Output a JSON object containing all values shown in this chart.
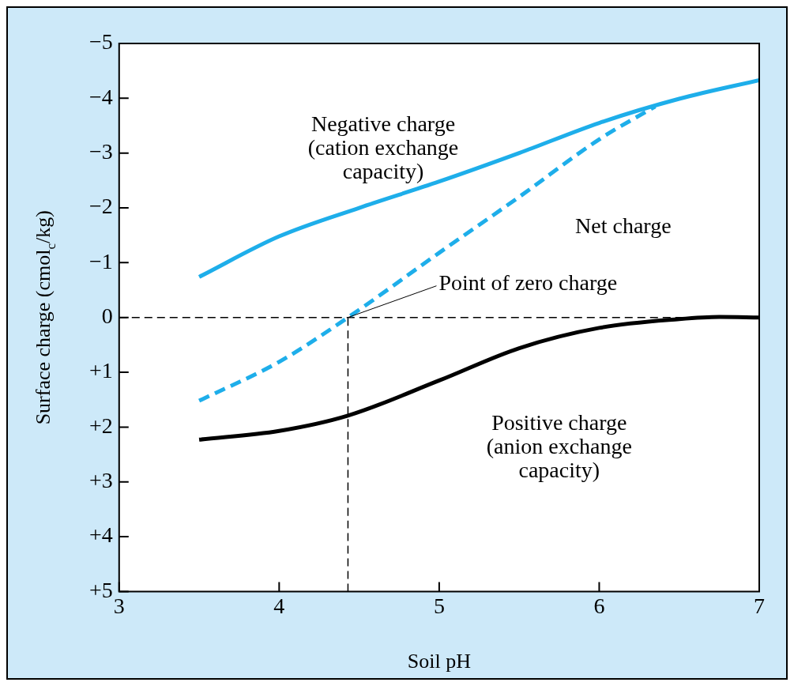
{
  "chart_data": {
    "type": "line",
    "xlabel": "Soil pH",
    "ylabel": "Surface charge (cmol$_{c}$/kg)",
    "xlim": [
      3,
      7
    ],
    "xticks": [
      3,
      4,
      5,
      6,
      7
    ],
    "ylim": [
      5,
      -5
    ],
    "yticks": [
      {
        "value": -5,
        "label": "−5"
      },
      {
        "value": -4,
        "label": "−4"
      },
      {
        "value": -3,
        "label": "−3"
      },
      {
        "value": -2,
        "label": "−2"
      },
      {
        "value": -1,
        "label": "−1"
      },
      0,
      {
        "value": 1,
        "label": "+1"
      },
      {
        "value": 2,
        "label": "+2"
      },
      {
        "value": 3,
        "label": "+3"
      },
      {
        "value": 4,
        "label": "+4"
      },
      {
        "value": 5,
        "label": "+5"
      }
    ],
    "grid": false,
    "legend": false,
    "marker": "none",
    "ref_lines": [
      {
        "axis": "y",
        "value": 0,
        "color": "#000000",
        "line_style": "dashed"
      }
    ],
    "annotations": [
      {
        "text": "Point of zero charge",
        "x": 4.43,
        "y": 0
      }
    ],
    "series": [
      {
        "name": "Negative charge (cation exchange capacity)",
        "color": "#1eaeea",
        "line_style": "solid",
        "x": [
          3.5,
          4,
          4.5,
          5,
          5.5,
          6,
          6.5,
          7
        ],
        "values": [
          -0.74,
          -1.48,
          -2.0,
          -2.48,
          -3.0,
          -3.55,
          -3.99,
          -4.33
        ]
      },
      {
        "name": "Net charge",
        "color": "#1eaeea",
        "line_style": "dashed",
        "x": [
          3.5,
          4,
          4.43,
          5,
          5.5,
          6,
          6.35
        ],
        "values": [
          1.52,
          0.81,
          0,
          -1.18,
          -2.2,
          -3.25,
          -3.85
        ]
      },
      {
        "name": "Positive charge (anion exchange capacity)",
        "color": "#000000",
        "line_style": "solid",
        "x": [
          3.5,
          4,
          4.43,
          5,
          5.5,
          6,
          6.5,
          6.75,
          7
        ],
        "values": [
          2.23,
          2.07,
          1.79,
          1.15,
          0.56,
          0.19,
          0.03,
          -0.01,
          0
        ]
      },
      {
        "color": "#000000",
        "line_style": "dashed",
        "x": [
          4.43,
          4.43
        ],
        "values": [
          5,
          0
        ]
      }
    ]
  }
}
